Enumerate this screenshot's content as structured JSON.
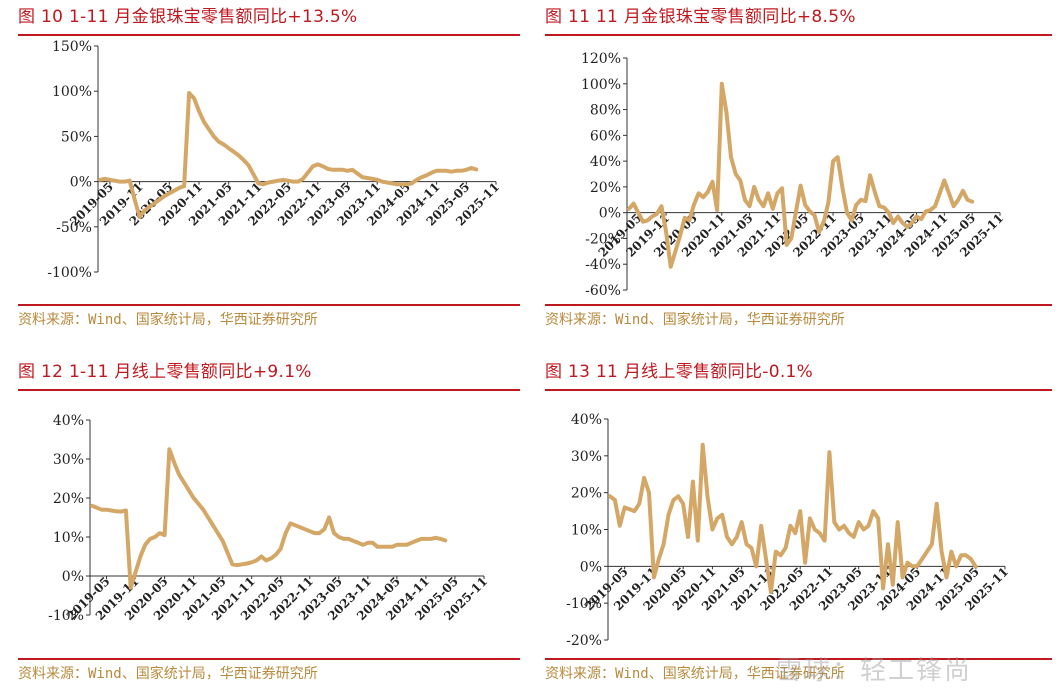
{
  "charts": [
    {
      "title": "图 10 1-11 月金银珠宝零售额同比+13.5%",
      "source": "资料来源：Wind、国家统计局，华西证券研究所",
      "y_tick_labels": [
        "150%",
        "100%",
        "50%",
        "0%",
        "-50%",
        "-100%"
      ],
      "x_tick_labels": [
        "2019-05",
        "2019-11",
        "2020-05",
        "2020-11",
        "2021-05",
        "2021-11",
        "2022-05",
        "2022-11",
        "2023-05",
        "2023-11",
        "2024-05",
        "2024-11",
        "2025-05",
        "2025-11"
      ]
    },
    {
      "title": "图 11 11 月金银珠宝零售额同比+8.5%",
      "source": "资料来源：Wind、国家统计局，华西证券研究所",
      "y_tick_labels": [
        "120%",
        "100%",
        "80%",
        "60%",
        "40%",
        "20%",
        "0%",
        "-20%",
        "-40%",
        "-60%"
      ],
      "x_tick_labels": [
        "2019-05",
        "2019-11",
        "2020-05",
        "2020-11",
        "2021-05",
        "2021-11",
        "2022-05",
        "2022-11",
        "2023-05",
        "2023-11",
        "2024-05",
        "2024-11",
        "2025-05",
        "2025-11"
      ]
    },
    {
      "title": "图 12 1-11 月线上零售额同比+9.1%",
      "source": "资料来源：Wind、国家统计局，华西证券研究所",
      "y_tick_labels": [
        "40%",
        "30%",
        "20%",
        "10%",
        "0%",
        "-10%"
      ],
      "x_tick_labels": [
        "2019-05",
        "2019-11",
        "2020-05",
        "2020-11",
        "2021-05",
        "2021-11",
        "2022-05",
        "2022-11",
        "2023-05",
        "2023-11",
        "2024-05",
        "2024-11",
        "2025-05",
        "2025-11"
      ]
    },
    {
      "title": "图 13 11 月线上零售额同比-0.1%",
      "source": "资料来源：Wind、国家统计局，华西证券研究所",
      "y_tick_labels": [
        "40%",
        "30%",
        "20%",
        "10%",
        "0%",
        "-10%",
        "-20%"
      ],
      "x_tick_labels": [
        "2019-05",
        "2019-11",
        "2020-05",
        "2020-11",
        "2021-05",
        "2021-11",
        "2022-05",
        "2022-11",
        "2023-05",
        "2023-11",
        "2024-05",
        "2024-11",
        "2025-05",
        "2025-11"
      ]
    }
  ],
  "watermark": "雪球：轻工锋尚",
  "line_color": "#d4a767",
  "accent_color": "#c0181f",
  "chart_data": [
    {
      "type": "line",
      "title": "图 10 1-11 月金银珠宝零售额同比+13.5%",
      "ylim": [
        -100,
        150
      ],
      "x_start": "2019-03",
      "x_end": "2025-11",
      "series": [
        {
          "values": [
            2,
            3,
            2,
            1,
            0,
            0,
            1,
            -20,
            -39,
            -32,
            -28,
            -24,
            -20,
            -16,
            -13,
            -10,
            -7,
            -5,
            98,
            92,
            78,
            66,
            58,
            50,
            44,
            41,
            37,
            33,
            29,
            24,
            18,
            8,
            -2,
            -3,
            -1,
            0,
            1,
            2,
            1,
            0,
            0,
            3,
            10,
            17,
            19,
            17,
            14,
            13,
            13,
            13,
            12,
            13,
            9,
            5,
            4,
            3,
            2,
            0,
            -1,
            -2,
            -3,
            -3,
            -3,
            -2,
            2,
            5,
            7,
            10,
            12,
            12,
            12,
            11,
            12,
            12,
            13,
            15,
            13.5
          ]
        }
      ]
    },
    {
      "type": "line",
      "title": "图 11 11 月金银珠宝零售额同比+8.5%",
      "ylim": [
        -60,
        120
      ],
      "x_start": "2019-03",
      "x_end": "2025-11",
      "series": [
        {
          "values": [
            3,
            7,
            0,
            -7,
            -6,
            -3,
            -1,
            5,
            -15,
            -42,
            -30,
            -18,
            -4,
            -6,
            6,
            15,
            12,
            16,
            24,
            2,
            100,
            78,
            43,
            30,
            25,
            10,
            5,
            20,
            10,
            5,
            15,
            3,
            15,
            19,
            -25,
            -20,
            1,
            21,
            6,
            1,
            -2,
            -15,
            -7,
            8,
            40,
            43,
            20,
            0,
            -6,
            6,
            10,
            9,
            29,
            16,
            5,
            4,
            0,
            -8,
            -3,
            -8,
            -11,
            -8,
            -3,
            -5,
            1,
            2,
            5,
            15,
            25,
            15,
            5,
            10,
            17,
            10,
            8.5
          ]
        }
      ]
    },
    {
      "type": "line",
      "title": "图 12 1-11 月线上零售额同比+9.1%",
      "ylim": [
        -10,
        40
      ],
      "x_start": "2019-02",
      "x_end": "2025-11",
      "series": [
        {
          "values": [
            18,
            17.5,
            17,
            17,
            16.8,
            16.6,
            16.5,
            16.8,
            -3,
            1,
            5,
            8,
            9.5,
            10,
            11,
            10.5,
            32.5,
            29,
            26,
            24,
            22,
            20,
            18.5,
            17,
            15,
            13,
            11,
            9,
            6,
            3,
            2.8,
            3,
            3.2,
            3.5,
            4,
            5,
            4,
            4.5,
            5.5,
            7,
            11,
            13.5,
            13,
            12.5,
            12,
            11.5,
            11,
            11,
            12,
            15,
            11,
            10,
            9.5,
            9.5,
            9,
            8.5,
            8,
            8.5,
            8.5,
            7.5,
            7.5,
            7.5,
            7.5,
            8,
            8,
            8,
            8.5,
            9,
            9.5,
            9.5,
            9.5,
            9.8,
            9.5,
            9.1
          ]
        }
      ]
    },
    {
      "type": "line",
      "title": "图 13 11 月线上零售额同比-0.1%",
      "ylim": [
        -20,
        40
      ],
      "x_start": "2019-02",
      "x_end": "2025-11",
      "series": [
        {
          "values": [
            19,
            18,
            11,
            16,
            15.5,
            15,
            17,
            24,
            20,
            -3,
            2,
            6,
            14,
            18,
            19,
            17,
            8,
            23,
            7,
            33,
            19,
            10,
            13,
            14,
            8,
            6,
            8,
            12,
            6,
            5,
            0,
            11,
            2,
            -7,
            4,
            3,
            5,
            11,
            9,
            15,
            1,
            13,
            10,
            9,
            7,
            31,
            12,
            10,
            11,
            9,
            8,
            12,
            10,
            11,
            15,
            13,
            -6,
            6,
            -5,
            12,
            -3,
            1,
            0,
            0,
            2,
            4,
            6,
            17,
            4,
            -3,
            4,
            0,
            3,
            3,
            2,
            -0.1
          ]
        }
      ]
    }
  ]
}
